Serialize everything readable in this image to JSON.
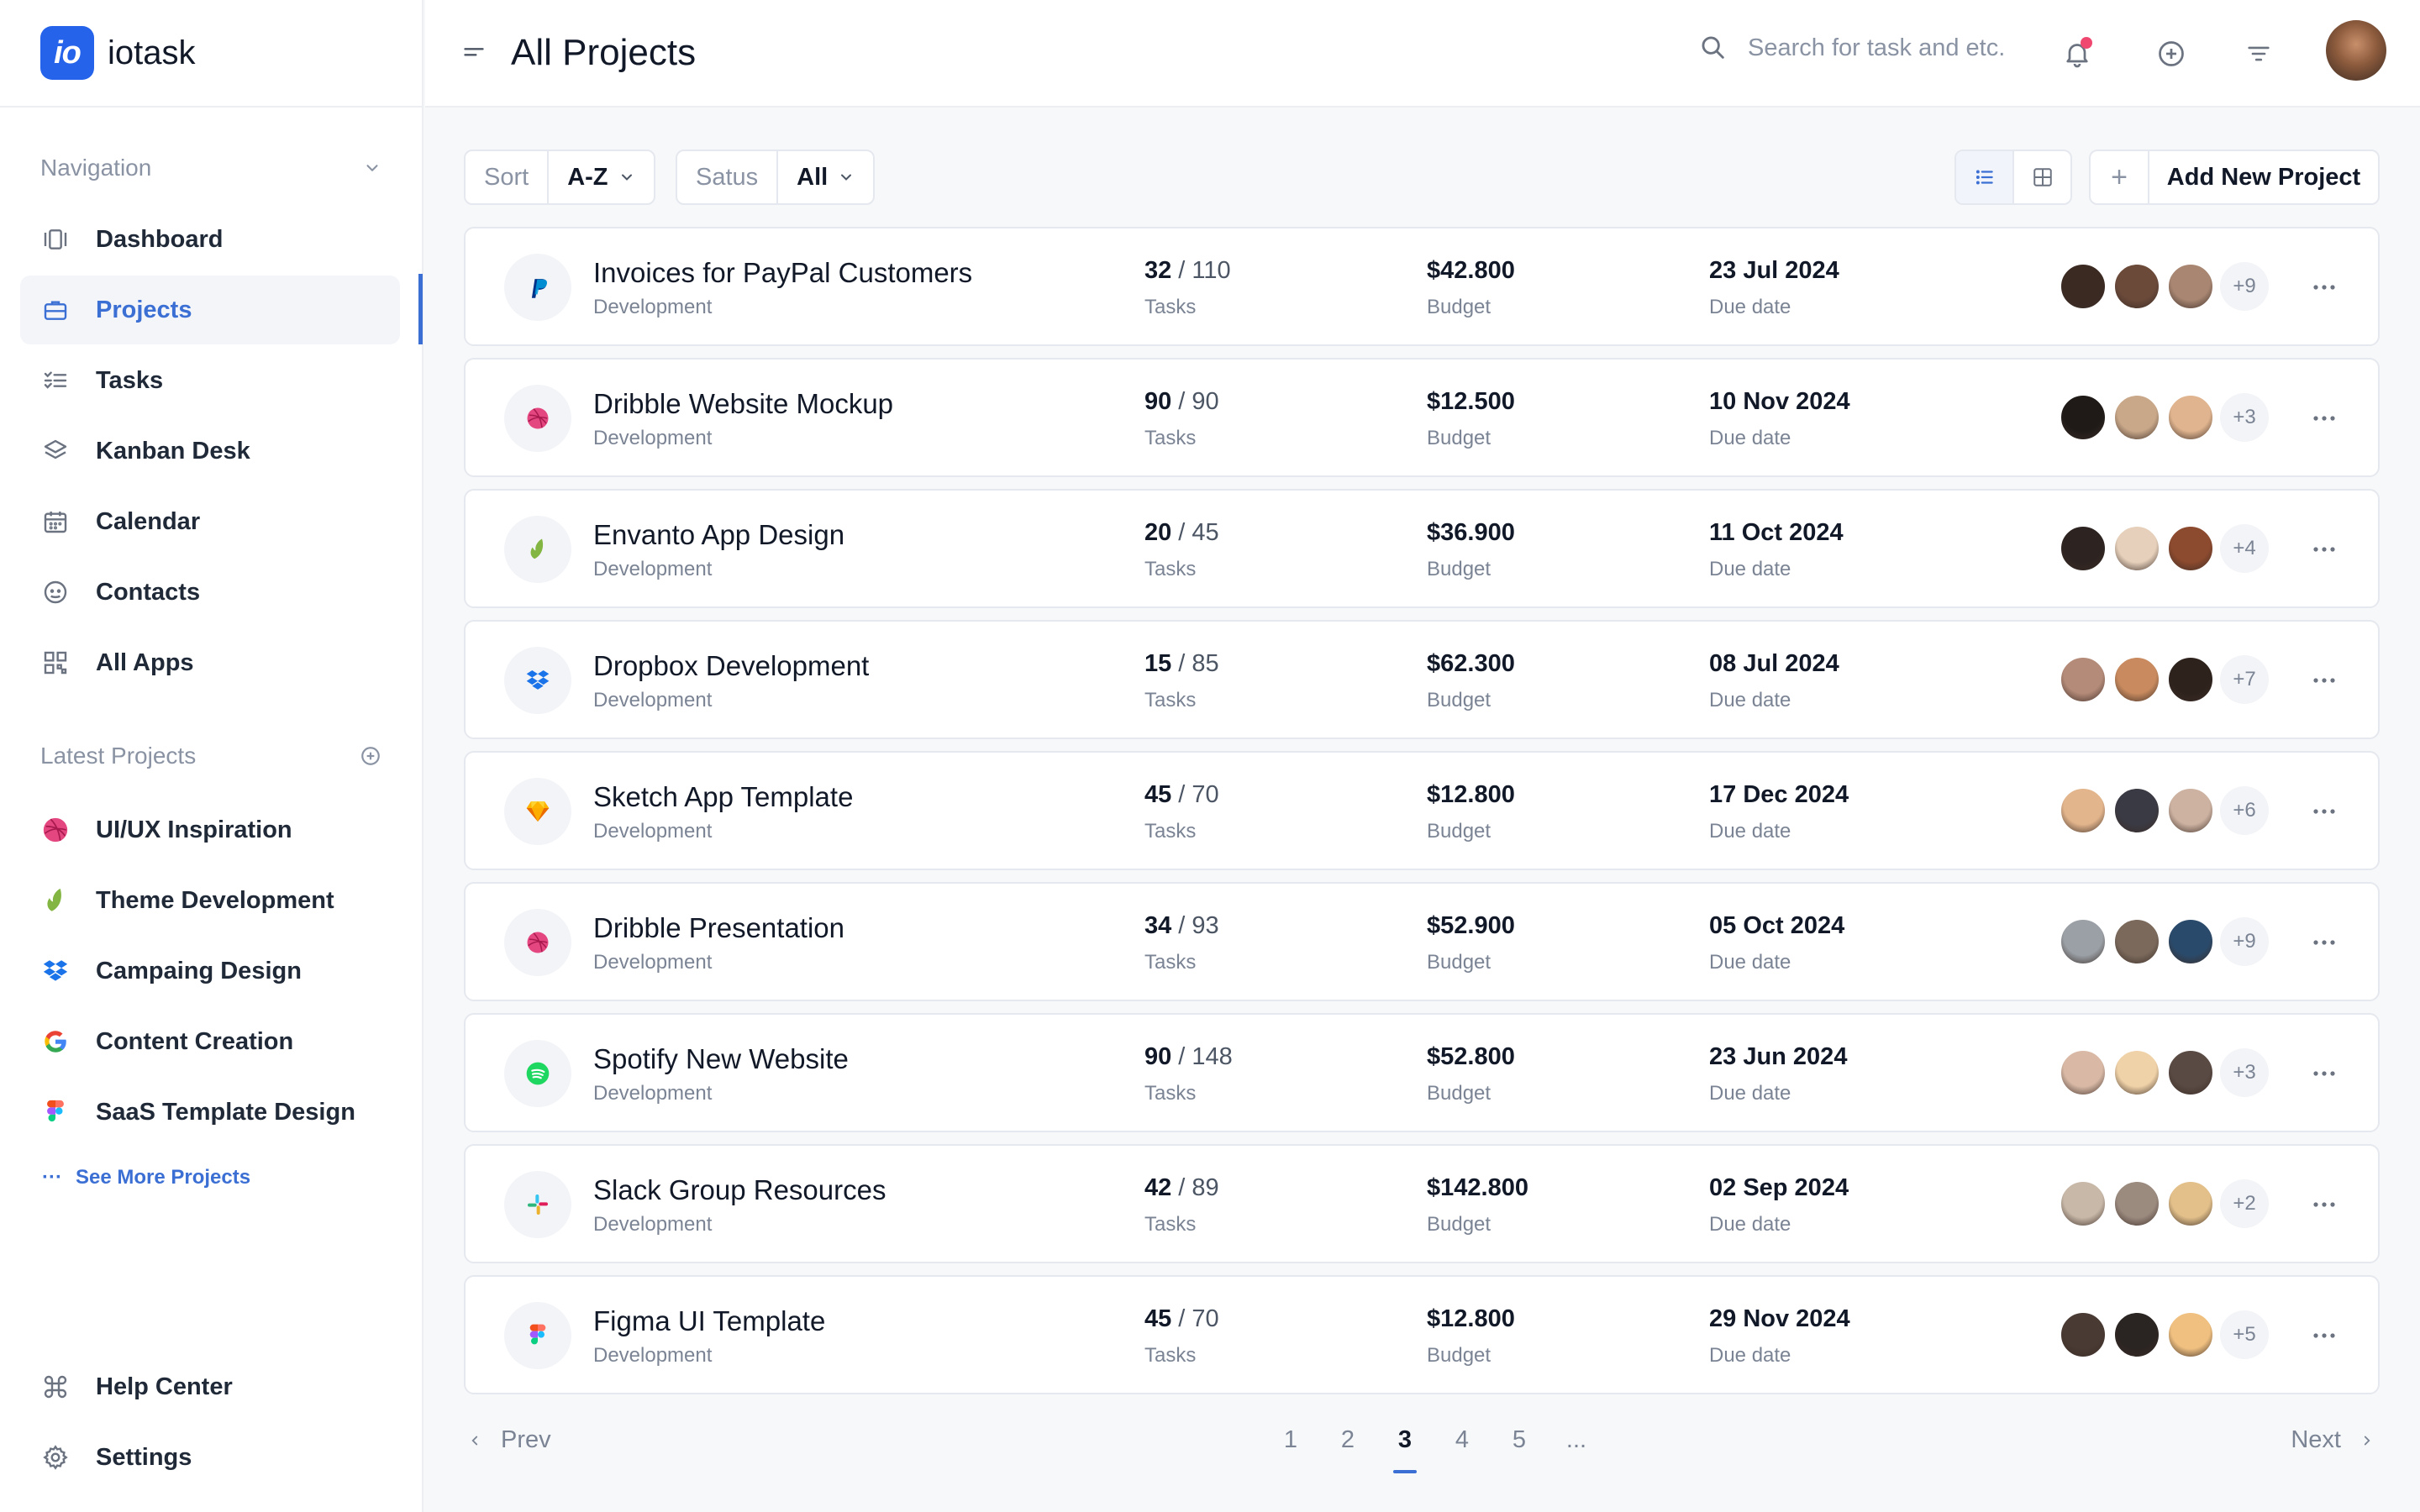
{
  "app": {
    "name": "iotask",
    "logo_text": "io"
  },
  "header": {
    "title": "All Projects",
    "search_placeholder": "Search for task and etc."
  },
  "sidebar": {
    "nav_heading": "Navigation",
    "nav_items": [
      {
        "label": "Dashboard",
        "icon": "dashboard-icon"
      },
      {
        "label": "Projects",
        "icon": "briefcase-icon",
        "active": true
      },
      {
        "label": "Tasks",
        "icon": "checklist-icon"
      },
      {
        "label": "Kanban Desk",
        "icon": "layers-icon"
      },
      {
        "label": "Calendar",
        "icon": "calendar-icon"
      },
      {
        "label": "Contacts",
        "icon": "contacts-icon"
      },
      {
        "label": "All Apps",
        "icon": "apps-grid-icon"
      }
    ],
    "latest_heading": "Latest Projects",
    "latest_projects": [
      {
        "label": "UI/UX Inspiration",
        "icon": "dribbble-icon"
      },
      {
        "label": "Theme Development",
        "icon": "envato-leaf-icon"
      },
      {
        "label": "Campaing Design",
        "icon": "dropbox-icon"
      },
      {
        "label": "Content Creation",
        "icon": "google-icon"
      },
      {
        "label": "SaaS Template Design",
        "icon": "figma-icon"
      }
    ],
    "see_more": "See More Projects",
    "bottom_items": [
      {
        "label": "Help Center",
        "icon": "command-icon"
      },
      {
        "label": "Settings",
        "icon": "gear-icon"
      }
    ]
  },
  "toolbar": {
    "sort_label": "Sort",
    "sort_value": "A-Z",
    "status_label": "Satus",
    "status_value": "All",
    "add_label": "Add New Project"
  },
  "projects": [
    {
      "name": "Invoices for PayPal Customers",
      "category": "Development",
      "done": "32",
      "total": "/ 110",
      "tasks_label": "Tasks",
      "budget": "$42.800",
      "budget_label": "Budget",
      "due": "23 Jul 2024",
      "due_label": "Due date",
      "more": "+9",
      "icon": "paypal-icon"
    },
    {
      "name": "Dribble Website Mockup",
      "category": "Development",
      "done": "90",
      "total": "/ 90",
      "tasks_label": "Tasks",
      "budget": "$12.500",
      "budget_label": "Budget",
      "due": "10 Nov 2024",
      "due_label": "Due date",
      "more": "+3",
      "icon": "dribbble-icon"
    },
    {
      "name": "Envanto App Design",
      "category": "Development",
      "done": "20",
      "total": "/ 45",
      "tasks_label": "Tasks",
      "budget": "$36.900",
      "budget_label": "Budget",
      "due": "11 Oct 2024",
      "due_label": "Due date",
      "more": "+4",
      "icon": "envato-leaf-icon"
    },
    {
      "name": "Dropbox Development",
      "category": "Development",
      "done": "15",
      "total": "/ 85",
      "tasks_label": "Tasks",
      "budget": "$62.300",
      "budget_label": "Budget",
      "due": "08 Jul 2024",
      "due_label": "Due date",
      "more": "+7",
      "icon": "dropbox-icon"
    },
    {
      "name": "Sketch App Template",
      "category": "Development",
      "done": "45",
      "total": "/ 70",
      "tasks_label": "Tasks",
      "budget": "$12.800",
      "budget_label": "Budget",
      "due": "17 Dec 2024",
      "due_label": "Due date",
      "more": "+6",
      "icon": "sketch-icon"
    },
    {
      "name": "Dribble Presentation",
      "category": "Development",
      "done": "34",
      "total": "/ 93",
      "tasks_label": "Tasks",
      "budget": "$52.900",
      "budget_label": "Budget",
      "due": "05 Oct 2024",
      "due_label": "Due date",
      "more": "+9",
      "icon": "dribbble-icon"
    },
    {
      "name": "Spotify New Website",
      "category": "Development",
      "done": "90",
      "total": "/ 148",
      "tasks_label": "Tasks",
      "budget": "$52.800",
      "budget_label": "Budget",
      "due": "23 Jun 2024",
      "due_label": "Due date",
      "more": "+3",
      "icon": "spotify-icon"
    },
    {
      "name": "Slack Group Resources",
      "category": "Development",
      "done": "42",
      "total": "/ 89",
      "tasks_label": "Tasks",
      "budget": "$142.800",
      "budget_label": "Budget",
      "due": "02 Sep 2024",
      "due_label": "Due date",
      "more": "+2",
      "icon": "slack-icon"
    },
    {
      "name": "Figma UI Template",
      "category": "Development",
      "done": "45",
      "total": "/ 70",
      "tasks_label": "Tasks",
      "budget": "$12.800",
      "budget_label": "Budget",
      "due": "29 Nov 2024",
      "due_label": "Due date",
      "more": "+5",
      "icon": "figma-icon"
    }
  ],
  "pagination": {
    "prev": "Prev",
    "next": "Next",
    "pages": [
      "1",
      "2",
      "3",
      "4",
      "5",
      "..."
    ],
    "current": "3"
  },
  "colors": {
    "accent": "#3b6fd4",
    "brand": "#2563eb",
    "notification": "#ef4770"
  }
}
